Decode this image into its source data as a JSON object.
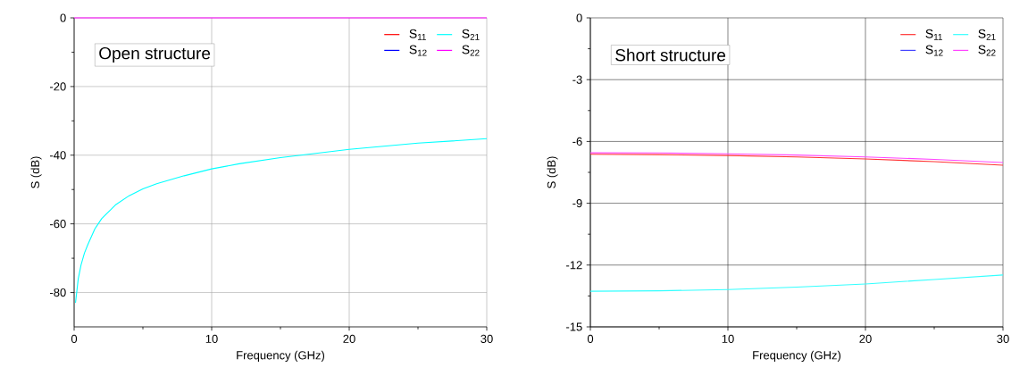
{
  "chart_data": [
    {
      "type": "line",
      "title": "Open structure",
      "xlabel": "Frequency (GHz)",
      "ylabel": "S (dB)",
      "xlim": [
        0,
        30
      ],
      "ylim": [
        -90,
        0
      ],
      "xticks": [
        0,
        10,
        20,
        30
      ],
      "yticks": [
        0,
        -20,
        -40,
        -60,
        -80
      ],
      "grid": true,
      "legend": "top right",
      "line_style": "solid",
      "series": [
        {
          "name": "S$_{11}$",
          "color": "#ff0000"
        },
        {
          "name": "S$_{12}$",
          "color": "#0000ff"
        },
        {
          "name": "S$_{21}$",
          "color": "#00ffff",
          "x": [
            0.1,
            0.3,
            0.5,
            0.75,
            1,
            1.5,
            2,
            3,
            4,
            5,
            6,
            8,
            10,
            12,
            15,
            20,
            25,
            30
          ],
          "values": [
            -83,
            -76,
            -72,
            -68.5,
            -66,
            -61.5,
            -58.5,
            -54.5,
            -51.8,
            -49.8,
            -48.3,
            -46,
            -44,
            -42.5,
            -40.7,
            -38.3,
            -36.5,
            -35.2
          ]
        },
        {
          "name": "S$_{22}$",
          "color": "#ff00ff",
          "x": [
            0,
            30
          ],
          "values": [
            0,
            0
          ]
        }
      ]
    },
    {
      "type": "line",
      "title": "Short structure",
      "xlabel": "Frequency (GHz)",
      "ylabel": "S (dB)",
      "xlim": [
        0,
        30
      ],
      "ylim": [
        -15,
        0
      ],
      "xticks": [
        0,
        10,
        20,
        30
      ],
      "yticks": [
        0,
        -3,
        -6,
        -9,
        -12,
        -15
      ],
      "grid": true,
      "legend": "top right",
      "line_style": "solid",
      "x": [
        0,
        5,
        10,
        15,
        20,
        25,
        30
      ],
      "series": [
        {
          "name": "S$_{11}$",
          "color": "#ff3333",
          "values": [
            -6.62,
            -6.64,
            -6.68,
            -6.75,
            -6.85,
            -6.98,
            -7.15
          ]
        },
        {
          "name": "S$_{12}$",
          "color": "#4444ff",
          "values": [
            null,
            null,
            null,
            null,
            null,
            null,
            null
          ]
        },
        {
          "name": "S$_{21}$",
          "color": "#33ffff",
          "values": [
            -13.27,
            -13.25,
            -13.19,
            -13.07,
            -12.92,
            -12.7,
            -12.48
          ]
        },
        {
          "name": "S$_{22}$",
          "color": "#ff44ff",
          "values": [
            -6.55,
            -6.56,
            -6.6,
            -6.66,
            -6.75,
            -6.87,
            -7.02
          ]
        }
      ]
    }
  ]
}
